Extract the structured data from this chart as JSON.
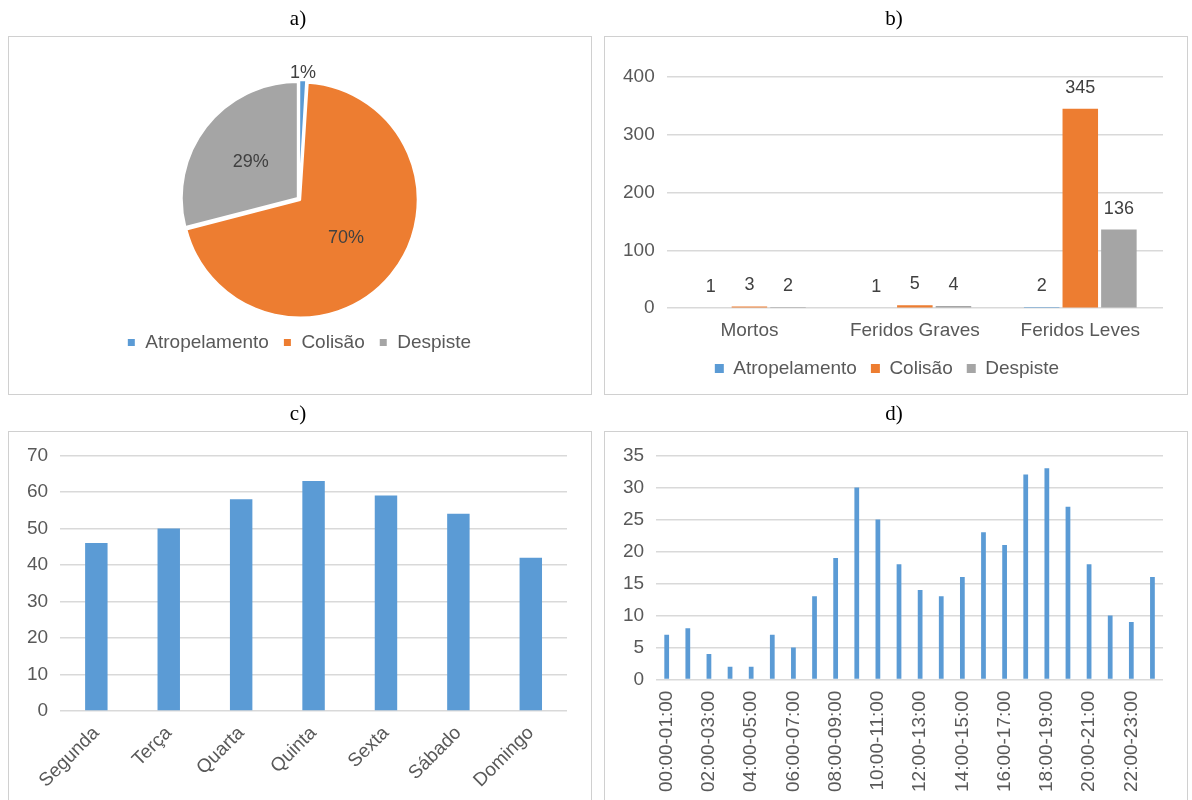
{
  "chart_data": [
    {
      "type": "pie",
      "title": "a)",
      "categories": [
        "Atropelamento",
        "Colisão",
        "Despiste"
      ],
      "values": [
        1,
        70,
        29
      ],
      "colors": [
        "#5b9bd5",
        "#ed7d31",
        "#a5a5a5"
      ],
      "value_labels": [
        "1%",
        "70%",
        "29%"
      ],
      "legend": "bottom"
    },
    {
      "type": "bar",
      "title": "b)",
      "categories": [
        "Mortos",
        "Feridos Graves",
        "Feridos Leves"
      ],
      "series": [
        {
          "name": "Atropelamento",
          "color": "#5b9bd5",
          "values": [
            1,
            1,
            2
          ]
        },
        {
          "name": "Colisão",
          "color": "#ed7d31",
          "values": [
            3,
            5,
            345
          ]
        },
        {
          "name": "Despiste",
          "color": "#a5a5a5",
          "values": [
            2,
            4,
            136
          ]
        }
      ],
      "ylim": [
        0,
        400
      ],
      "yticks": [
        0,
        100,
        200,
        300,
        400
      ],
      "grid": "y",
      "data_labels": true,
      "legend": "bottom"
    },
    {
      "type": "bar",
      "title": "c)",
      "categories": [
        "Segunda",
        "Terça",
        "Quarta",
        "Quinta",
        "Sexta",
        "Sábado",
        "Domingo"
      ],
      "values": [
        46,
        50,
        58,
        63,
        59,
        54,
        42
      ],
      "color": "#5b9bd5",
      "ylim": [
        0,
        70
      ],
      "yticks": [
        0,
        10,
        20,
        30,
        40,
        50,
        60,
        70
      ],
      "grid": "y"
    },
    {
      "type": "bar",
      "title": "d)",
      "categories": [
        "00:00-01:00",
        null,
        "02:00-03:00",
        null,
        "04:00-05:00",
        null,
        "06:00-07:00",
        null,
        "08:00-09:00",
        null,
        "10:00-11:00",
        null,
        "12:00-13:00",
        null,
        "14:00-15:00",
        null,
        "16:00-17:00",
        null,
        "18:00-19:00",
        null,
        "20:00-21:00",
        null,
        "22:00-23:00",
        null
      ],
      "values": [
        7,
        8,
        4,
        2,
        2,
        7,
        5,
        13,
        19,
        30,
        25,
        18,
        14,
        13,
        16,
        23,
        21,
        32,
        33,
        27,
        18,
        10,
        9,
        16
      ],
      "color": "#5b9bd5",
      "ylim": [
        0,
        35
      ],
      "yticks": [
        0,
        5,
        10,
        15,
        20,
        25,
        30,
        35
      ],
      "grid": "y"
    }
  ]
}
